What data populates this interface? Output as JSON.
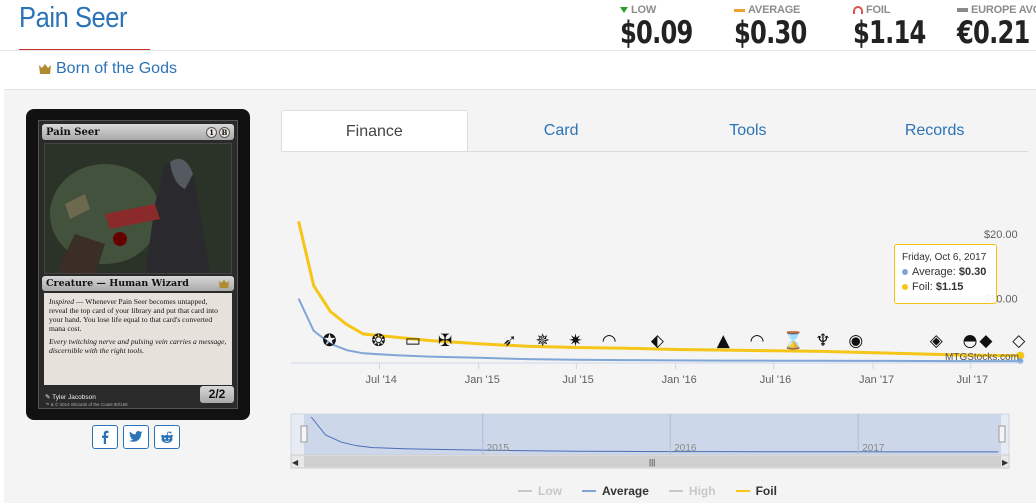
{
  "header": {
    "title": "Pain Seer",
    "set_name": "Born of the Gods"
  },
  "prices": {
    "low": {
      "label": "LOW",
      "value": "$0.09"
    },
    "average": {
      "label": "AVERAGE",
      "value": "$0.30"
    },
    "foil": {
      "label": "FOIL",
      "value": "$1.14"
    },
    "europe": {
      "label": "EUROPE AVG",
      "value": "€0.21"
    }
  },
  "card": {
    "name": "Pain Seer",
    "type_line": "Creature — Human Wizard",
    "rules_keyword": "Inspired",
    "rules_text": " — Whenever Pain Seer becomes untapped, reveal the top card of your library and put that card into your hand. You lose life equal to that card's converted mana cost.",
    "flavor": "Every twitching nerve and pulsing vein carries a message, discernible with the right tools.",
    "pt": "2/2",
    "artist": "Tyler Jacobson",
    "copyright": "™ & © 2014 Wizards of the Coast 80/165",
    "cost": [
      "1",
      "B"
    ]
  },
  "tabs": [
    {
      "label": "Finance",
      "active": true
    },
    {
      "label": "Card",
      "active": false
    },
    {
      "label": "Tools",
      "active": false
    },
    {
      "label": "Records",
      "active": false
    }
  ],
  "social": [
    "facebook-icon",
    "twitter-icon",
    "reddit-icon"
  ],
  "colors": {
    "link": "#2b73b7",
    "foil": "#f5c518",
    "average": "#7fa6d6",
    "accent_red": "#c9302c"
  },
  "tooltip": {
    "date": "Friday, Oct 6, 2017",
    "average_label": "Average:",
    "average_value": "$0.30",
    "foil_label": "Foil:",
    "foil_value": "$1.15"
  },
  "watermark": "MTGStocks.com",
  "chart_data": {
    "type": "line",
    "x_ticks": [
      "Jul '14",
      "Jan '15",
      "Jul '15",
      "Jan '16",
      "Jul '16",
      "Jan '17",
      "Jul '17"
    ],
    "y_ticks": [
      "$20.00",
      "$10.00"
    ],
    "navigator_labels": [
      "2015",
      "2016",
      "2017"
    ],
    "ylim": [
      0,
      25
    ],
    "series": [
      {
        "name": "Foil",
        "color": "#f5c518",
        "x": [
          "2014-02",
          "2014-03",
          "2014-04",
          "2014-05",
          "2014-06",
          "2014-08",
          "2014-10",
          "2015-01",
          "2015-04",
          "2015-07",
          "2015-10",
          "2016-01",
          "2016-04",
          "2016-07",
          "2016-10",
          "2017-01",
          "2017-04",
          "2017-07",
          "2017-10"
        ],
        "values": [
          22,
          12,
          8,
          6,
          4.5,
          4,
          3.5,
          3,
          2.6,
          2.4,
          2.3,
          2.1,
          2.0,
          1.9,
          1.8,
          1.6,
          1.4,
          1.2,
          1.15
        ]
      },
      {
        "name": "Average",
        "color": "#7fa6d6",
        "x": [
          "2014-02",
          "2014-03",
          "2014-04",
          "2014-05",
          "2014-06",
          "2014-08",
          "2014-10",
          "2015-01",
          "2015-04",
          "2015-07",
          "2015-10",
          "2016-01",
          "2016-04",
          "2016-07",
          "2016-10",
          "2017-01",
          "2017-04",
          "2017-07",
          "2017-10"
        ],
        "values": [
          10,
          5,
          3,
          2,
          1.5,
          1.2,
          1.0,
          0.8,
          0.6,
          0.5,
          0.45,
          0.4,
          0.38,
          0.36,
          0.34,
          0.32,
          0.31,
          0.3,
          0.3
        ]
      }
    ],
    "legend": [
      {
        "name": "Low",
        "color": "#c8c8c8",
        "active": false
      },
      {
        "name": "Average",
        "color": "#7fa6d6",
        "active": true
      },
      {
        "name": "High",
        "color": "#c8c8c8",
        "active": false
      },
      {
        "name": "Foil",
        "color": "#f5c518",
        "active": true
      }
    ],
    "grid": false,
    "legend_position": "bottom"
  }
}
